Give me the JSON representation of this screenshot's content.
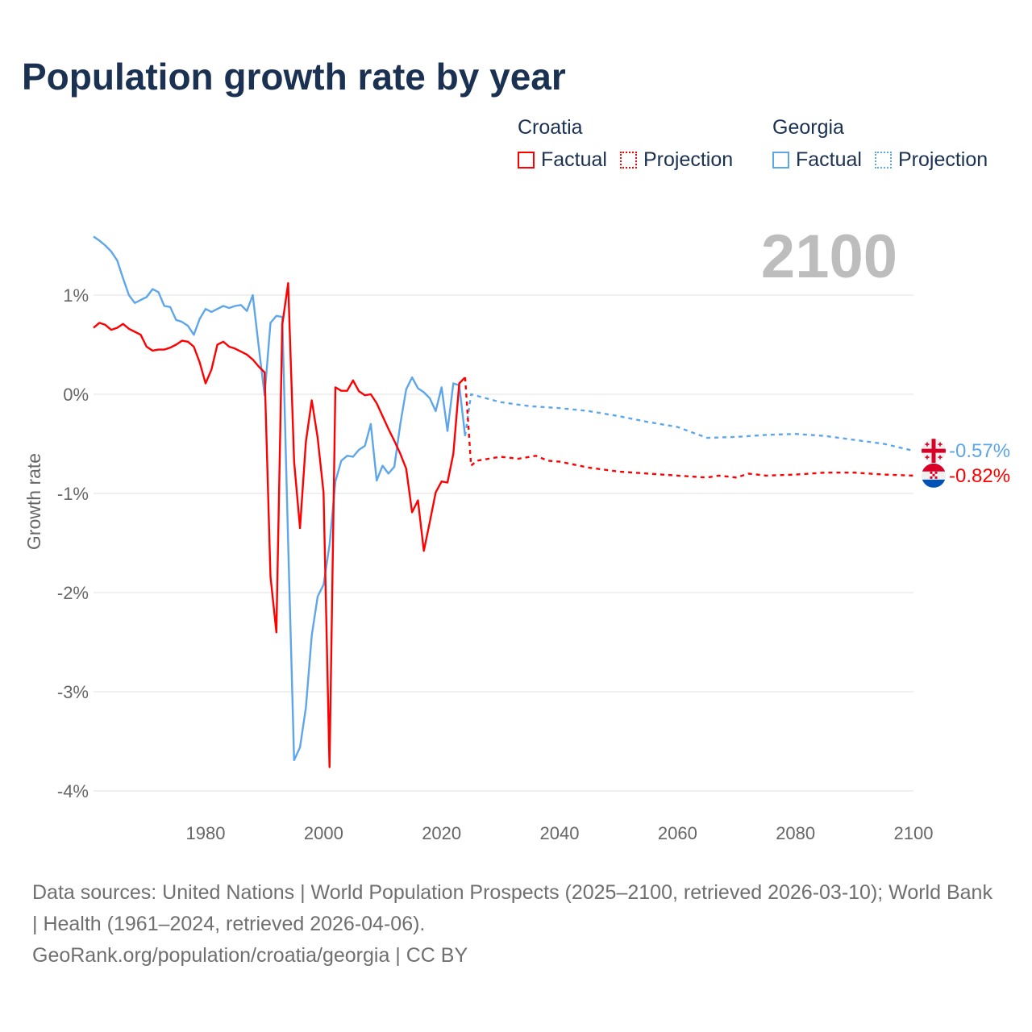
{
  "title": "Population growth rate by year",
  "legend": {
    "groups": [
      {
        "name": "Croatia",
        "factual": "Factual",
        "projection": "Projection",
        "color": "#ff0000"
      },
      {
        "name": "Georgia",
        "factual": "Factual",
        "projection": "Projection",
        "color": "#5ea6ea"
      }
    ]
  },
  "current_year": "2100",
  "footer": {
    "sources": "Data sources: United Nations | World Population Prospects (2025–2100, retrieved 2026-03-10); World Bank | Health (1961–2024, retrieved 2026-04-06).",
    "credit": "GeoRank.org/population/croatia/georgia | CC BY"
  },
  "chart_data": {
    "type": "line",
    "title": "Population growth rate by year",
    "xlabel": "",
    "ylabel": "Growth rate",
    "xlim": [
      1961,
      2100
    ],
    "ylim": [
      -4.3,
      1.9
    ],
    "x_ticks": [
      1980,
      2000,
      2020,
      2040,
      2060,
      2080,
      2100
    ],
    "x_tick_labels": [
      "1980",
      "2000",
      "2020",
      "2040",
      "2060",
      "2080",
      "2100"
    ],
    "y_ticks": [
      1,
      0,
      -1,
      -2,
      -3,
      -4
    ],
    "y_tick_labels": [
      "1%",
      "0%",
      "-1%",
      "-2%",
      "-3%",
      "-4%"
    ],
    "grid": true,
    "legend_position": "top-right",
    "series": [
      {
        "name": "Croatia",
        "kind": "Factual",
        "color": "#ff0000",
        "end_label": "-0.82%",
        "end_value": -0.82,
        "flag": "croatia-flag",
        "x": [
          1961,
          1962,
          1963,
          1964,
          1965,
          1966,
          1967,
          1968,
          1969,
          1970,
          1971,
          1972,
          1973,
          1974,
          1975,
          1976,
          1977,
          1978,
          1979,
          1980,
          1981,
          1982,
          1983,
          1984,
          1985,
          1986,
          1987,
          1988,
          1989,
          1990,
          1991,
          1992,
          1993,
          1994,
          1995,
          1996,
          1997,
          1998,
          1999,
          2000,
          2001,
          2002,
          2003,
          2004,
          2005,
          2006,
          2007,
          2008,
          2009,
          2010,
          2011,
          2012,
          2013,
          2014,
          2015,
          2016,
          2017,
          2018,
          2019,
          2020,
          2021,
          2022,
          2023,
          2024
        ],
        "values": [
          0.67,
          0.72,
          0.7,
          0.65,
          0.67,
          0.71,
          0.66,
          0.63,
          0.6,
          0.48,
          0.44,
          0.45,
          0.45,
          0.47,
          0.5,
          0.54,
          0.53,
          0.48,
          0.32,
          0.11,
          0.25,
          0.5,
          0.53,
          0.48,
          0.46,
          0.43,
          0.4,
          0.35,
          0.28,
          0.22,
          -1.84,
          -2.4,
          0.7,
          1.12,
          -0.68,
          -1.35,
          -0.48,
          -0.06,
          -0.44,
          -0.99,
          -3.76,
          0.07,
          0.035,
          0.035,
          0.14,
          0.03,
          -0.01,
          0.0,
          -0.09,
          -0.22,
          -0.35,
          -0.47,
          -0.6,
          -0.75,
          -1.19,
          -1.07,
          -1.58,
          -1.29,
          -0.99,
          -0.88,
          -0.89,
          -0.6,
          0.11,
          0.17
        ]
      },
      {
        "name": "Croatia",
        "kind": "Projection",
        "color": "#ff0000",
        "x": [
          2024,
          2025,
          2026,
          2030,
          2033,
          2036,
          2038,
          2040,
          2045,
          2050,
          2055,
          2060,
          2065,
          2067,
          2070,
          2072,
          2075,
          2080,
          2085,
          2090,
          2095,
          2100
        ],
        "values": [
          0.17,
          -0.72,
          -0.67,
          -0.63,
          -0.65,
          -0.62,
          -0.67,
          -0.68,
          -0.74,
          -0.78,
          -0.8,
          -0.82,
          -0.84,
          -0.82,
          -0.84,
          -0.8,
          -0.82,
          -0.81,
          -0.79,
          -0.79,
          -0.81,
          -0.82
        ]
      },
      {
        "name": "Georgia",
        "kind": "Factual",
        "color": "#5ea6ea",
        "end_label": "-0.57%",
        "end_value": -0.57,
        "flag": "georgia-flag",
        "x": [
          1961,
          1962,
          1963,
          1964,
          1965,
          1966,
          1967,
          1968,
          1969,
          1970,
          1971,
          1972,
          1973,
          1974,
          1975,
          1976,
          1977,
          1978,
          1979,
          1980,
          1981,
          1982,
          1983,
          1984,
          1985,
          1986,
          1987,
          1988,
          1989,
          1990,
          1991,
          1992,
          1993,
          1994,
          1995,
          1996,
          1997,
          1998,
          1999,
          2000,
          2001,
          2002,
          2003,
          2004,
          2005,
          2006,
          2007,
          2008,
          2009,
          2010,
          2011,
          2012,
          2013,
          2014,
          2015,
          2016,
          2017,
          2018,
          2019,
          2020,
          2021,
          2022,
          2023,
          2024
        ],
        "values": [
          1.59,
          1.55,
          1.5,
          1.44,
          1.35,
          1.17,
          1.0,
          0.92,
          0.95,
          0.98,
          1.06,
          1.03,
          0.89,
          0.88,
          0.75,
          0.73,
          0.69,
          0.6,
          0.76,
          0.86,
          0.83,
          0.86,
          0.89,
          0.87,
          0.89,
          0.9,
          0.84,
          1.0,
          0.48,
          -0.01,
          0.72,
          0.79,
          0.78,
          -1.5,
          -3.69,
          -3.56,
          -3.16,
          -2.43,
          -2.04,
          -1.92,
          -1.52,
          -0.88,
          -0.67,
          -0.62,
          -0.63,
          -0.56,
          -0.52,
          -0.3,
          -0.87,
          -0.72,
          -0.8,
          -0.73,
          -0.3,
          0.05,
          0.17,
          0.06,
          0.02,
          -0.04,
          -0.17,
          0.07,
          -0.37,
          0.11,
          0.09,
          -0.42
        ]
      },
      {
        "name": "Georgia",
        "kind": "Projection",
        "color": "#5ea6ea",
        "x": [
          2024,
          2025,
          2030,
          2035,
          2040,
          2045,
          2050,
          2055,
          2060,
          2065,
          2070,
          2075,
          2080,
          2085,
          2090,
          2095,
          2100
        ],
        "values": [
          -0.42,
          0.0,
          -0.08,
          -0.12,
          -0.14,
          -0.17,
          -0.22,
          -0.28,
          -0.33,
          -0.44,
          -0.43,
          -0.41,
          -0.4,
          -0.42,
          -0.46,
          -0.5,
          -0.57
        ]
      }
    ]
  }
}
